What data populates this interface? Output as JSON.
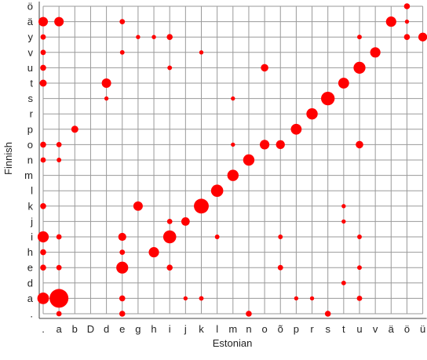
{
  "chart_data": {
    "type": "scatter",
    "title": "",
    "xlabel": "Estonian",
    "ylabel": "Finnish",
    "x_categories": [
      ".",
      "a",
      "b",
      "D",
      "d",
      "e",
      "g",
      "h",
      "i",
      "j",
      "k",
      "l",
      "m",
      "n",
      "o",
      "õ",
      "p",
      "r",
      "s",
      "t",
      "u",
      "v",
      "ä",
      "ö",
      "ü"
    ],
    "y_categories": [
      ".",
      "a",
      "d",
      "e",
      "h",
      "i",
      "j",
      "k",
      "l",
      "m",
      "n",
      "o",
      "p",
      "r",
      "s",
      "t",
      "u",
      "v",
      "y",
      "ä",
      "ö"
    ],
    "grid": true,
    "legend": "none",
    "marker_color": "#ff0000",
    "size_unit": "relative frequency (1 = largest)",
    "points": [
      {
        "x": ".",
        "y": "ä",
        "size": 0.25
      },
      {
        "x": "a",
        "y": "ä",
        "size": 0.25
      },
      {
        "x": ".",
        "y": "i",
        "size": 0.35
      },
      {
        "x": ".",
        "y": "a",
        "size": 0.38
      },
      {
        "x": "a",
        "y": "a",
        "size": 1.0
      },
      {
        "x": "b",
        "y": "p",
        "size": 0.14
      },
      {
        "x": "d",
        "y": "t",
        "size": 0.25
      },
      {
        "x": "e",
        "y": "i",
        "size": 0.18
      },
      {
        "x": "e",
        "y": "e",
        "size": 0.4
      },
      {
        "x": "g",
        "y": "k",
        "size": 0.25
      },
      {
        "x": "h",
        "y": "h",
        "size": 0.3
      },
      {
        "x": "i",
        "y": "i",
        "size": 0.48
      },
      {
        "x": "i",
        "y": "y",
        "size": 0.1
      },
      {
        "x": "j",
        "y": "j",
        "size": 0.2
      },
      {
        "x": "k",
        "y": "k",
        "size": 0.62
      },
      {
        "x": "l",
        "y": "l",
        "size": 0.42
      },
      {
        "x": "m",
        "y": "m",
        "size": 0.36
      },
      {
        "x": "n",
        "y": "n",
        "size": 0.36
      },
      {
        "x": "o",
        "y": "o",
        "size": 0.26
      },
      {
        "x": "o",
        "y": "u",
        "size": 0.16
      },
      {
        "x": "õ",
        "y": "o",
        "size": 0.22
      },
      {
        "x": "p",
        "y": "p",
        "size": 0.33
      },
      {
        "x": "r",
        "y": "r",
        "size": 0.36
      },
      {
        "x": "s",
        "y": "s",
        "size": 0.52
      },
      {
        "x": "t",
        "y": "t",
        "size": 0.33
      },
      {
        "x": "u",
        "y": "u",
        "size": 0.4
      },
      {
        "x": "u",
        "y": "o",
        "size": 0.16
      },
      {
        "x": "v",
        "y": "v",
        "size": 0.3
      },
      {
        "x": "ä",
        "y": "ä",
        "size": 0.3
      },
      {
        "x": "ü",
        "y": "y",
        "size": 0.22
      },
      {
        "x": "ö",
        "y": "ö",
        "size": 0.1
      },
      {
        "x": "ö",
        "y": "y",
        "size": 0.1
      },
      {
        "x": "e",
        "y": "ä",
        "size": 0.08
      },
      {
        "x": "e",
        "y": "a",
        "size": 0.1
      },
      {
        "x": "e",
        "y": "h",
        "size": 0.08
      },
      {
        "x": "e",
        "y": "v",
        "size": 0.06
      },
      {
        "x": "e",
        "y": ".",
        "size": 0.1
      },
      {
        "x": "i",
        "y": "e",
        "size": 0.1
      },
      {
        "x": "i",
        "y": "j",
        "size": 0.08
      },
      {
        "x": "i",
        "y": "u",
        "size": 0.06
      },
      {
        "x": "a",
        "y": "o",
        "size": 0.08
      },
      {
        "x": "a",
        "y": "i",
        "size": 0.08
      },
      {
        "x": "a",
        "y": "n",
        "size": 0.06
      },
      {
        "x": "a",
        "y": "e",
        "size": 0.08
      },
      {
        "x": "a",
        "y": ".",
        "size": 0.08
      },
      {
        "x": ".",
        "y": "u",
        "size": 0.1
      },
      {
        "x": ".",
        "y": "t",
        "size": 0.14
      },
      {
        "x": ".",
        "y": "y",
        "size": 0.08
      },
      {
        "x": ".",
        "y": "v",
        "size": 0.08
      },
      {
        "x": ".",
        "y": "o",
        "size": 0.1
      },
      {
        "x": ".",
        "y": "n",
        "size": 0.08
      },
      {
        "x": ".",
        "y": "k",
        "size": 0.1
      },
      {
        "x": ".",
        "y": "e",
        "size": 0.1
      },
      {
        "x": ".",
        "y": "h",
        "size": 0.1
      },
      {
        "x": "n",
        "y": ".",
        "size": 0.1
      },
      {
        "x": "s",
        "y": ".",
        "size": 0.1
      },
      {
        "x": "k",
        "y": "a",
        "size": 0.06
      },
      {
        "x": "l",
        "y": "i",
        "size": 0.06
      },
      {
        "x": "d",
        "y": "s",
        "size": 0.05
      },
      {
        "x": "u",
        "y": "a",
        "size": 0.08
      },
      {
        "x": "u",
        "y": "i",
        "size": 0.06
      },
      {
        "x": "u",
        "y": "e",
        "size": 0.06
      },
      {
        "x": "u",
        "y": "y",
        "size": 0.06
      },
      {
        "x": "õ",
        "y": "e",
        "size": 0.08
      },
      {
        "x": "õ",
        "y": "i",
        "size": 0.06
      },
      {
        "x": "t",
        "y": "d",
        "size": 0.06
      },
      {
        "x": "t",
        "y": "j",
        "size": 0.05
      },
      {
        "x": "t",
        "y": "k",
        "size": 0.05
      },
      {
        "x": "k",
        "y": "v",
        "size": 0.05
      },
      {
        "x": "g",
        "y": "y",
        "size": 0.05
      },
      {
        "x": "h",
        "y": "y",
        "size": 0.05
      },
      {
        "x": "j",
        "y": "a",
        "size": 0.05
      },
      {
        "x": "m",
        "y": "s",
        "size": 0.05
      },
      {
        "x": "m",
        "y": "o",
        "size": 0.05
      },
      {
        "x": "r",
        "y": "a",
        "size": 0.05
      },
      {
        "x": "p",
        "y": "a",
        "size": 0.05
      },
      {
        "x": "ö",
        "y": "ä",
        "size": 0.05
      }
    ]
  }
}
